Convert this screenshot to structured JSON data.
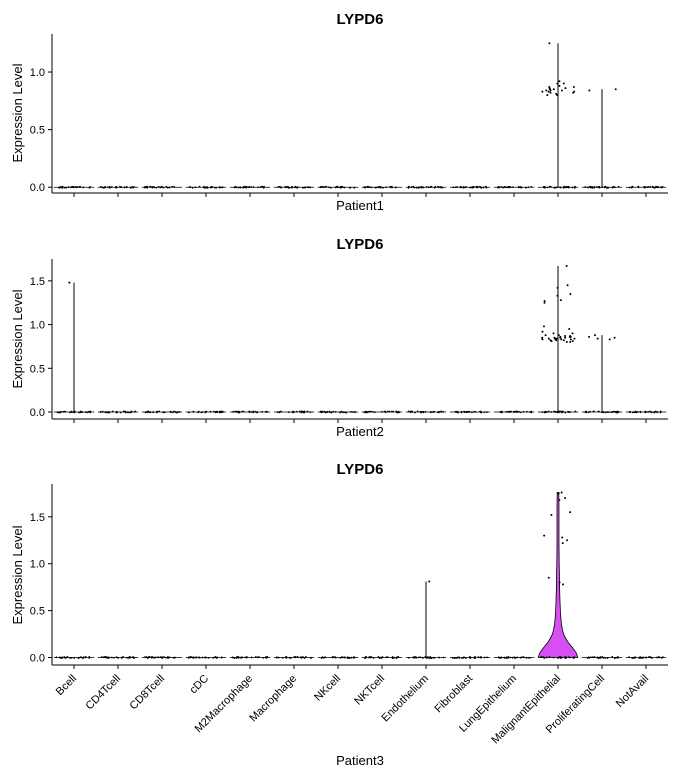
{
  "categories": [
    "Bcell",
    "CD4Tcell",
    "CD8Tcell",
    "cDC",
    "M2Macrophage",
    "Macrophage",
    "NKcell",
    "NKTcell",
    "Endothelium",
    "Fibroblast",
    "LungEpithelium",
    "MalignantEpithelial",
    "ProliferatingCell",
    "NotAvail"
  ],
  "colors": {
    "violin_fill": "#d64ff2",
    "point": "#000000"
  },
  "chart_data": [
    {
      "type": "violin",
      "title": "LYPD6",
      "xlabel": "Patient1",
      "ylabel": "Expression Level",
      "ylim": [
        -0.05,
        1.33
      ],
      "yticks": [
        "0.0",
        "0.5",
        "1.0"
      ],
      "show_x_tick_labels": false,
      "category_max": [
        0,
        0,
        0,
        0,
        0,
        0,
        0,
        0,
        0,
        0,
        0,
        1.25,
        0.85,
        0
      ],
      "nonzero_points": [
        {
          "category": "MalignantEpithelial",
          "values": [
            1.25,
            0.92,
            0.9,
            0.88,
            0.87,
            0.86,
            0.85,
            0.85,
            0.84,
            0.84,
            0.83,
            0.83,
            0.82,
            0.82,
            0.81,
            0.8,
            0.8,
            0.86,
            0.84,
            0.83,
            0.9,
            0.87
          ]
        },
        {
          "category": "ProliferatingCell",
          "values": [
            0.85,
            0.84
          ]
        }
      ]
    },
    {
      "type": "violin",
      "title": "LYPD6",
      "xlabel": "Patient2",
      "ylabel": "Expression Level",
      "ylim": [
        -0.08,
        1.75
      ],
      "yticks": [
        "0.0",
        "0.5",
        "1.0",
        "1.5"
      ],
      "show_x_tick_labels": false,
      "category_max": [
        1.48,
        0,
        0,
        0,
        0,
        0,
        0,
        0,
        0,
        0,
        0,
        1.67,
        0.88,
        0
      ],
      "nonzero_points": [
        {
          "category": "Bcell",
          "values": [
            1.48
          ]
        },
        {
          "category": "MalignantEpithelial",
          "values": [
            1.67,
            1.45,
            1.42,
            1.35,
            1.33,
            1.28,
            1.27,
            1.25,
            0.98,
            0.95,
            0.92,
            0.9,
            0.88,
            0.87,
            0.86,
            0.86,
            0.85,
            0.85,
            0.85,
            0.84,
            0.84,
            0.84,
            0.83,
            0.83,
            0.83,
            0.82,
            0.82,
            0.82,
            0.81,
            0.81,
            0.8,
            0.8,
            0.86,
            0.85,
            0.84,
            0.83,
            0.9,
            0.88,
            0.87,
            0.86
          ]
        },
        {
          "category": "ProliferatingCell",
          "values": [
            0.88,
            0.86,
            0.85,
            0.84,
            0.83
          ]
        }
      ]
    },
    {
      "type": "violin",
      "title": "LYPD6",
      "xlabel": "Patient3",
      "ylabel": "Expression Level",
      "ylim": [
        -0.08,
        1.85
      ],
      "yticks": [
        "0.0",
        "0.5",
        "1.0",
        "1.5"
      ],
      "show_x_tick_labels": true,
      "category_max": [
        0,
        0,
        0,
        0,
        0,
        0,
        0,
        0,
        0.81,
        0,
        0,
        1.76,
        0,
        0
      ],
      "violin_category": "MalignantEpithelial",
      "violin_profile": [
        [
          0.0,
          1.0
        ],
        [
          0.05,
          0.92
        ],
        [
          0.1,
          0.75
        ],
        [
          0.15,
          0.55
        ],
        [
          0.2,
          0.4
        ],
        [
          0.25,
          0.28
        ],
        [
          0.3,
          0.22
        ],
        [
          0.35,
          0.18
        ],
        [
          0.4,
          0.15
        ],
        [
          0.5,
          0.12
        ],
        [
          0.6,
          0.1
        ],
        [
          0.75,
          0.08
        ],
        [
          0.9,
          0.07
        ],
        [
          1.0,
          0.06
        ],
        [
          1.2,
          0.05
        ],
        [
          1.4,
          0.05
        ],
        [
          1.6,
          0.05
        ],
        [
          1.76,
          0.04
        ]
      ],
      "nonzero_points": [
        {
          "category": "Endothelium",
          "values": [
            0.81
          ]
        },
        {
          "category": "MalignantEpithelial",
          "values": [
            1.76,
            1.75,
            1.7,
            1.68,
            1.55,
            1.52,
            1.3,
            1.28,
            1.25,
            1.22,
            0.85,
            0.8,
            0.78
          ]
        }
      ]
    }
  ]
}
